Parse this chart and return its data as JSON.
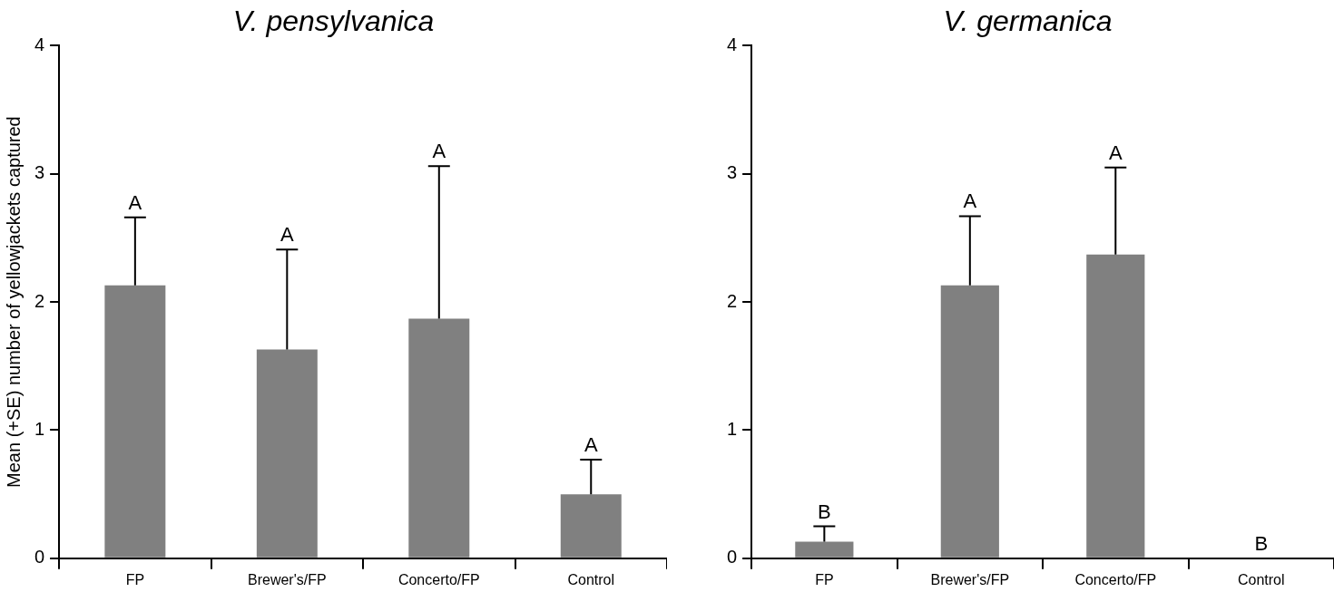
{
  "chart_data": [
    {
      "type": "bar",
      "title": "V. pensylvanica",
      "ylabel": "Mean (+SE) number of yellowjackets captured",
      "categories": [
        "FP",
        "Brewer's/FP",
        "Concerto/FP",
        "Control"
      ],
      "values": [
        2.13,
        1.63,
        1.87,
        0.5
      ],
      "color": "#808080",
      "errors": [
        [
          2.13,
          2.66
        ],
        [
          1.63,
          2.41
        ],
        [
          1.87,
          3.06
        ],
        [
          0.5,
          0.77
        ]
      ],
      "ylim": [
        0,
        4
      ],
      "yticks": [
        0,
        1,
        2,
        3,
        4
      ],
      "grid": false,
      "legend": false,
      "annotations": [
        {
          "text": "A",
          "x": "FP",
          "y": 2.66
        },
        {
          "text": "A",
          "x": "Brewer's/FP",
          "y": 2.41
        },
        {
          "text": "A",
          "x": "Concerto/FP",
          "y": 3.06
        },
        {
          "text": "A",
          "x": "Control",
          "y": 0.77
        }
      ]
    },
    {
      "type": "bar",
      "title": "V. germanica",
      "categories": [
        "FP",
        "Brewer's/FP",
        "Concerto/FP",
        "Control"
      ],
      "values": [
        0.13,
        2.13,
        2.37,
        0
      ],
      "color": "#808080",
      "errors": [
        [
          0.13,
          0.25
        ],
        [
          2.13,
          2.67
        ],
        [
          2.37,
          3.05
        ],
        null
      ],
      "ylim": [
        0,
        4
      ],
      "yticks": [
        0,
        1,
        2,
        3,
        4
      ],
      "grid": false,
      "legend": false,
      "annotations": [
        {
          "text": "B",
          "x": "FP",
          "y": 0.25
        },
        {
          "text": "A",
          "x": "Brewer's/FP",
          "y": 2.67
        },
        {
          "text": "A",
          "x": "Concerto/FP",
          "y": 3.05
        },
        {
          "text": "B",
          "x": "Control",
          "y": 0
        }
      ]
    }
  ]
}
